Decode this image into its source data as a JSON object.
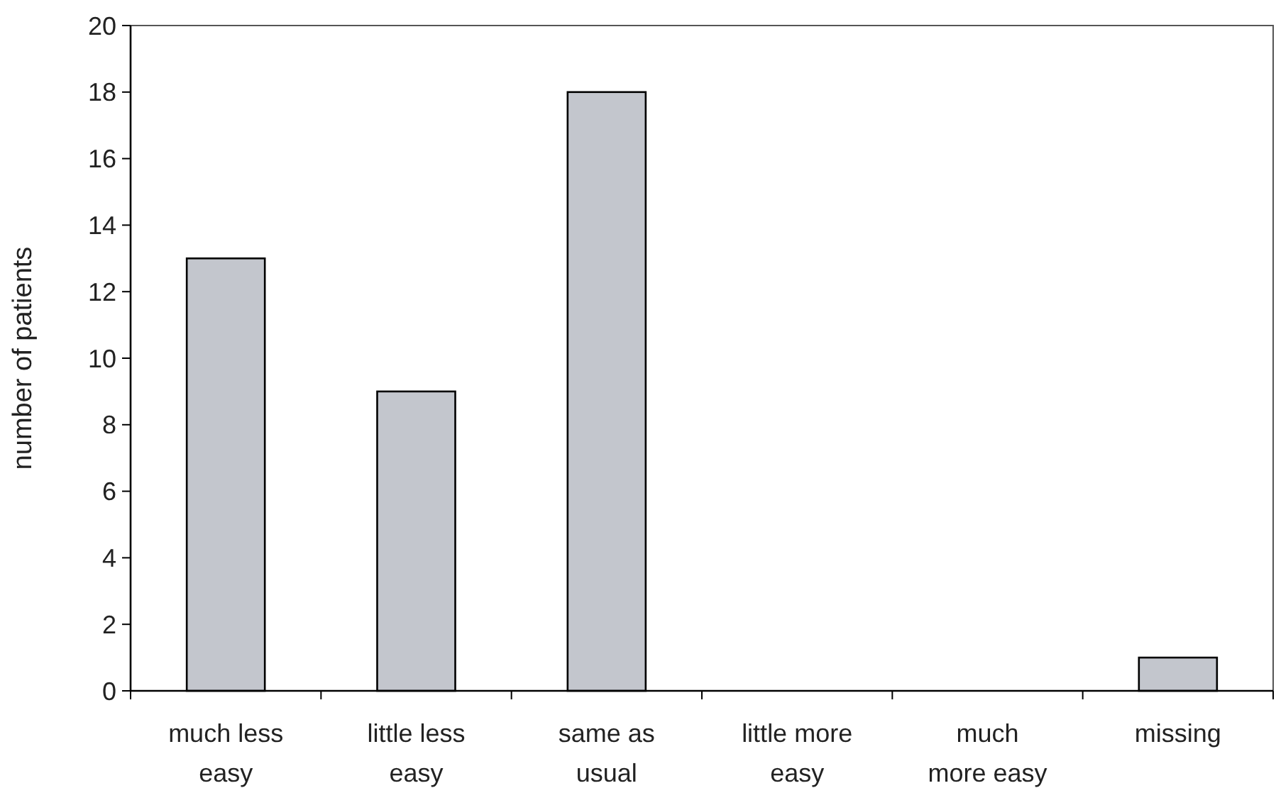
{
  "chart_data": {
    "type": "bar",
    "ylabel": "number of patients",
    "categories": [
      "much less\neasy",
      "little less\neasy",
      "same as\nusual",
      "little more\neasy",
      "much\nmore easy",
      "missing"
    ],
    "values": [
      13,
      9,
      18,
      0,
      0,
      1
    ],
    "color": "#c3c6cd",
    "ylim": [
      0,
      20
    ],
    "yticks": [
      0,
      2,
      4,
      6,
      8,
      10,
      12,
      14,
      16,
      18,
      20
    ]
  }
}
